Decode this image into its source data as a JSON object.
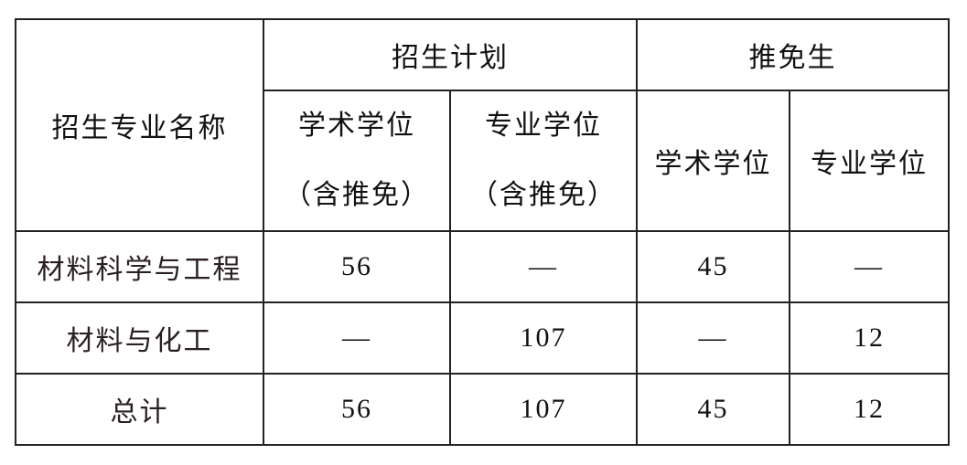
{
  "table": {
    "header": {
      "major_name": "招生专业名称",
      "plan_group": "招生计划",
      "exempt_group": "推免生",
      "plan_academic_line1": "学术学位",
      "plan_academic_line2": "（含推免）",
      "plan_professional_line1": "专业学位",
      "plan_professional_line2": "（含推免）",
      "exempt_academic": "学术学位",
      "exempt_professional": "专业学位"
    },
    "rows": [
      {
        "name": "材料科学与工程",
        "plan_academic": "56",
        "plan_professional": "—",
        "exempt_academic": "45",
        "exempt_professional": "—"
      },
      {
        "name": "材料与化工",
        "plan_academic": "—",
        "plan_professional": "107",
        "exempt_academic": "—",
        "exempt_professional": "12"
      },
      {
        "name": "总计",
        "plan_academic": "56",
        "plan_professional": "107",
        "exempt_academic": "45",
        "exempt_professional": "12"
      }
    ]
  }
}
